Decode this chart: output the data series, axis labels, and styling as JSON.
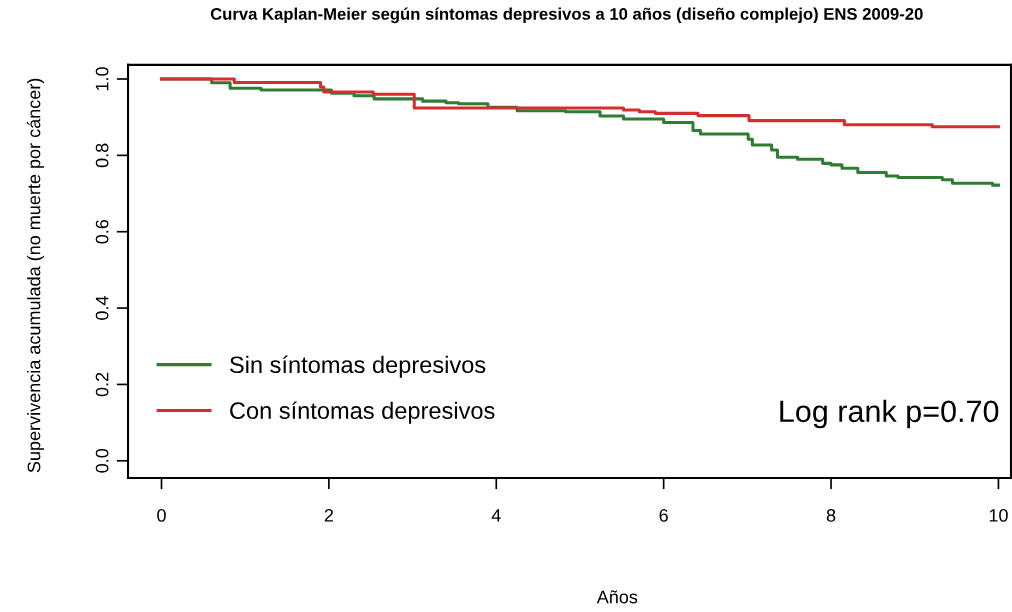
{
  "chart_data": {
    "type": "step",
    "title": "Curva Kaplan-Meier según síntomas depresivos a 10 años (diseño complejo) ENS 2009-20",
    "xlabel": "Años",
    "ylabel": "Supervivencia acumulada (no muerte por cáncer)",
    "xlim": [
      -0.4,
      10.15
    ],
    "ylim": [
      -0.045,
      1.037
    ],
    "xticks": [
      0,
      2,
      4,
      6,
      8,
      10
    ],
    "yticks": [
      {
        "value": 0,
        "label": "0.0"
      },
      {
        "value": 0.2,
        "label": "0.2"
      },
      {
        "value": 0.4,
        "label": "0.4"
      },
      {
        "value": 0.6,
        "label": "0.6"
      },
      {
        "value": 0.8,
        "label": "0.8"
      },
      {
        "value": 1,
        "label": "1.0"
      }
    ],
    "grid": false,
    "legend": "bottom left",
    "line_style": "solid",
    "marker": "none",
    "annotations": [
      "Log rank p=0.70"
    ],
    "series": [
      {
        "name": "Sin síntomas depresivos",
        "color": "#2e7d32",
        "x": [
          0,
          0.6,
          0.82,
          1.19,
          2.03,
          2.3,
          2.54,
          3.12,
          3.4,
          3.55,
          3.9,
          4.25,
          4.83,
          5.24,
          5.52,
          6.0,
          6.35,
          6.44,
          7.01,
          7.06,
          7.29,
          7.36,
          7.6,
          7.9,
          8.0,
          8.13,
          8.32,
          8.66,
          8.8,
          9.33,
          9.45,
          9.93,
          10
        ],
        "values": [
          1.0,
          0.99,
          0.976,
          0.971,
          0.963,
          0.956,
          0.948,
          0.942,
          0.938,
          0.935,
          0.926,
          0.917,
          0.914,
          0.903,
          0.895,
          0.886,
          0.865,
          0.856,
          0.842,
          0.827,
          0.814,
          0.795,
          0.79,
          0.779,
          0.775,
          0.766,
          0.755,
          0.746,
          0.742,
          0.736,
          0.727,
          0.722,
          0.722
        ]
      },
      {
        "name": "Con síntomas depresivos",
        "color": "#d32f2f",
        "x": [
          0,
          0.87,
          1.9,
          1.94,
          2.53,
          3.02,
          5.52,
          5.71,
          5.9,
          6.41,
          7.02,
          8.16,
          9.21,
          10
        ],
        "values": [
          1.0,
          0.991,
          0.979,
          0.966,
          0.96,
          0.924,
          0.919,
          0.914,
          0.91,
          0.904,
          0.891,
          0.88,
          0.875,
          0.875
        ]
      }
    ]
  }
}
